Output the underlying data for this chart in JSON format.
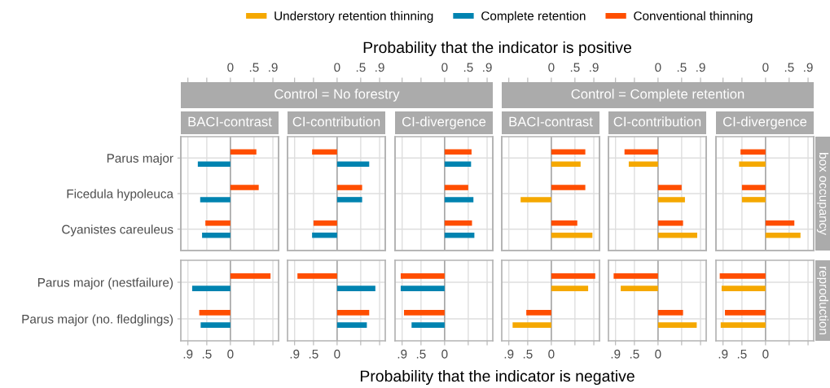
{
  "chart_data": [
    {
      "type": "bar",
      "orientation": "horizontal",
      "title": "BACI-contrast",
      "xlabel": "Probability that the indicator is positive",
      "legend": "top",
      "grid": true,
      "categories": [
        "Parus major",
        "Ficedula hypoleuca",
        "Cyanistes careuleus"
      ],
      "xlim": [
        -1.05,
        1.02
      ],
      "xticks": [
        {
          "value": -0.9,
          "label": null
        },
        {
          "value": -0.5,
          "label": null
        },
        0,
        {
          "value": 0.5,
          "label": ".5"
        },
        {
          "value": 0.9,
          "label": ".9"
        }
      ],
      "ref_lines": [
        {
          "axis": "x",
          "value": 0,
          "color": "#9e9e9e"
        }
      ],
      "series": [
        {
          "name": "Understory retention thinning",
          "color": "#f5a800",
          "values": [
            null,
            null,
            null
          ]
        },
        {
          "name": "Complete retention",
          "color": "#0083b0",
          "values": [
            -0.69,
            -0.64,
            -0.6
          ]
        },
        {
          "name": "Conventional thinning",
          "color": "#ff4e00",
          "values": [
            0.55,
            0.6,
            -0.53
          ]
        }
      ]
    },
    {
      "type": "bar",
      "orientation": "horizontal",
      "title": "CI-contribution",
      "subtitle": "Control = No forestry",
      "grid": true,
      "tick_labels": "x",
      "categories": [
        null,
        null,
        null
      ],
      "xlim": [
        -1.05,
        1.02
      ],
      "xticks": [
        {
          "value": -0.9,
          "label": null
        },
        {
          "value": -0.5,
          "label": null
        },
        0,
        {
          "value": 0.5,
          "label": ".5"
        },
        {
          "value": 0.9,
          "label": ".9"
        }
      ],
      "ref_lines": [
        {
          "axis": "x",
          "value": 0,
          "color": "#9e9e9e"
        }
      ],
      "series": [
        {
          "color": "#0083b0",
          "values": [
            0.68,
            0.53,
            -0.53
          ]
        },
        {
          "color": "#ff4e00",
          "values": [
            -0.53,
            0.53,
            -0.5
          ]
        }
      ]
    },
    {
      "type": "bar",
      "orientation": "horizontal",
      "title": "CI-divergence",
      "grid": true,
      "tick_labels": "x",
      "categories": [
        null,
        null,
        null
      ],
      "xlim": [
        -1.05,
        1.02
      ],
      "xticks": [
        {
          "value": -0.9,
          "label": null
        },
        {
          "value": -0.5,
          "label": null
        },
        0,
        {
          "value": 0.5,
          "label": ".5"
        },
        {
          "value": 0.9,
          "label": ".9"
        }
      ],
      "ref_lines": [
        {
          "axis": "x",
          "value": 0,
          "color": "#9e9e9e"
        }
      ],
      "series": [
        {
          "color": "#0083b0",
          "values": [
            0.56,
            0.61,
            0.63
          ]
        },
        {
          "color": "#ff4e00",
          "values": [
            0.57,
            0.5,
            0.58
          ]
        }
      ]
    },
    {
      "type": "bar",
      "orientation": "horizontal",
      "title": "BACI-contrast",
      "grid": true,
      "tick_labels": "x",
      "categories": [
        null,
        null,
        null
      ],
      "xlim": [
        -1.05,
        1.02
      ],
      "xticks": [
        {
          "value": -0.9,
          "label": null
        },
        {
          "value": -0.5,
          "label": null
        },
        0,
        {
          "value": 0.5,
          "label": ".5"
        },
        {
          "value": 0.9,
          "label": ".9"
        }
      ],
      "ref_lines": [
        {
          "axis": "x",
          "value": 0,
          "color": "#9e9e9e"
        }
      ],
      "series": [
        {
          "color": "#f5a800",
          "values": [
            0.62,
            -0.65,
            0.87
          ]
        },
        {
          "color": "#ff4e00",
          "values": [
            0.72,
            0.72,
            0.55
          ]
        }
      ]
    },
    {
      "type": "bar",
      "orientation": "horizontal",
      "title": "CI-contribution",
      "subtitle": "Control = Complete retention",
      "grid": true,
      "tick_labels": "x",
      "categories": [
        null,
        null,
        null
      ],
      "xlim": [
        -1.05,
        1.02
      ],
      "xticks": [
        {
          "value": -0.9,
          "label": null
        },
        {
          "value": -0.5,
          "label": null
        },
        0,
        {
          "value": 0.5,
          "label": ".5"
        },
        {
          "value": 0.9,
          "label": ".9"
        }
      ],
      "ref_lines": [
        {
          "axis": "x",
          "value": 0,
          "color": "#9e9e9e"
        }
      ],
      "series": [
        {
          "color": "#f5a800",
          "values": [
            -0.62,
            0.57,
            0.83
          ]
        },
        {
          "color": "#ff4e00",
          "values": [
            -0.71,
            0.5,
            0.53
          ]
        }
      ]
    },
    {
      "type": "bar",
      "orientation": "horizontal",
      "title": "CI-divergence",
      "annotations": [
        "box occupancy"
      ],
      "grid": true,
      "tick_labels": "x",
      "categories": [
        null,
        null,
        null
      ],
      "xlim": [
        -1.05,
        1.02
      ],
      "xticks": [
        {
          "value": -0.9,
          "label": null
        },
        {
          "value": -0.5,
          "label": null
        },
        0,
        {
          "value": 0.5,
          "label": ".5"
        },
        {
          "value": 0.9,
          "label": ".9"
        }
      ],
      "ref_lines": [
        {
          "axis": "x",
          "value": 0,
          "color": "#9e9e9e"
        }
      ],
      "series": [
        {
          "color": "#f5a800",
          "values": [
            -0.56,
            -0.5,
            0.74
          ]
        },
        {
          "color": "#ff4e00",
          "values": [
            -0.53,
            -0.5,
            0.61
          ]
        }
      ]
    },
    {
      "type": "bar",
      "orientation": "horizontal",
      "xlabel": "Probability that the indicator is negative",
      "grid": true,
      "categories": [
        "Parus major (nestfailure)",
        "Parus major (no. fledglings)"
      ],
      "xlim": [
        -1.05,
        1.02
      ],
      "xticks": [
        {
          "value": -0.9,
          "label": ".9"
        },
        {
          "value": -0.5,
          "label": ".5"
        },
        0,
        {
          "value": 0.5,
          "label": null
        },
        {
          "value": 0.9,
          "label": null
        }
      ],
      "ref_lines": [
        {
          "axis": "x",
          "value": 0,
          "color": "#9e9e9e"
        }
      ],
      "series": [
        {
          "color": "#0083b0",
          "values": [
            -0.81,
            -0.63
          ]
        },
        {
          "color": "#ff4e00",
          "values": [
            0.85,
            -0.66
          ]
        }
      ]
    },
    {
      "type": "bar",
      "orientation": "horizontal",
      "grid": true,
      "tick_labels": "x",
      "categories": [
        null,
        null
      ],
      "xlim": [
        -1.05,
        1.02
      ],
      "xticks": [
        {
          "value": -0.9,
          "label": ".9"
        },
        {
          "value": -0.5,
          "label": ".5"
        },
        0,
        {
          "value": 0.5,
          "label": null
        },
        {
          "value": 0.9,
          "label": null
        }
      ],
      "ref_lines": [
        {
          "axis": "x",
          "value": 0,
          "color": "#9e9e9e"
        }
      ],
      "series": [
        {
          "color": "#0083b0",
          "values": [
            0.81,
            0.63
          ]
        },
        {
          "color": "#ff4e00",
          "values": [
            -0.84,
            0.68
          ]
        }
      ]
    },
    {
      "type": "bar",
      "orientation": "horizontal",
      "grid": true,
      "tick_labels": "x",
      "categories": [
        null,
        null
      ],
      "xlim": [
        -1.05,
        1.02
      ],
      "xticks": [
        {
          "value": -0.9,
          "label": ".9"
        },
        {
          "value": -0.5,
          "label": ".5"
        },
        0,
        {
          "value": 0.5,
          "label": null
        },
        {
          "value": 0.9,
          "label": null
        }
      ],
      "ref_lines": [
        {
          "axis": "x",
          "value": 0,
          "color": "#9e9e9e"
        }
      ],
      "series": [
        {
          "color": "#0083b0",
          "values": [
            -0.93,
            -0.7
          ]
        },
        {
          "color": "#ff4e00",
          "values": [
            -0.93,
            -0.86
          ]
        }
      ]
    },
    {
      "type": "bar",
      "orientation": "horizontal",
      "grid": true,
      "tick_labels": "x",
      "categories": [
        null,
        null
      ],
      "xlim": [
        -1.05,
        1.02
      ],
      "xticks": [
        {
          "value": -0.9,
          "label": ".9"
        },
        {
          "value": -0.5,
          "label": ".5"
        },
        0,
        {
          "value": 0.5,
          "label": null
        },
        {
          "value": 0.9,
          "label": null
        }
      ],
      "ref_lines": [
        {
          "axis": "x",
          "value": 0,
          "color": "#9e9e9e"
        }
      ],
      "series": [
        {
          "color": "#f5a800",
          "values": [
            0.78,
            -0.82
          ]
        },
        {
          "color": "#ff4e00",
          "values": [
            0.93,
            -0.53
          ]
        }
      ]
    },
    {
      "type": "bar",
      "orientation": "horizontal",
      "grid": true,
      "tick_labels": "x",
      "categories": [
        null,
        null
      ],
      "xlim": [
        -1.05,
        1.02
      ],
      "xticks": [
        {
          "value": -0.9,
          "label": ".9"
        },
        {
          "value": -0.5,
          "label": ".5"
        },
        0,
        {
          "value": 0.5,
          "label": null
        },
        {
          "value": 0.9,
          "label": null
        }
      ],
      "ref_lines": [
        {
          "axis": "x",
          "value": 0,
          "color": "#9e9e9e"
        }
      ],
      "series": [
        {
          "color": "#f5a800",
          "values": [
            -0.79,
            0.82
          ]
        },
        {
          "color": "#ff4e00",
          "values": [
            -0.94,
            0.53
          ]
        }
      ]
    },
    {
      "type": "bar",
      "orientation": "horizontal",
      "annotations": [
        "reproduction"
      ],
      "grid": true,
      "tick_labels": "x",
      "categories": [
        null,
        null
      ],
      "xlim": [
        -1.05,
        1.02
      ],
      "xticks": [
        {
          "value": -0.9,
          "label": ".9"
        },
        {
          "value": -0.5,
          "label": ".5"
        },
        0,
        {
          "value": 0.5,
          "label": null
        },
        {
          "value": 0.9,
          "label": null
        }
      ],
      "ref_lines": [
        {
          "axis": "x",
          "value": 0,
          "color": "#9e9e9e"
        }
      ],
      "series": [
        {
          "color": "#f5a800",
          "values": [
            -0.93,
            -0.95
          ]
        },
        {
          "color": "#ff4e00",
          "values": [
            -0.97,
            -0.86
          ]
        }
      ]
    }
  ]
}
